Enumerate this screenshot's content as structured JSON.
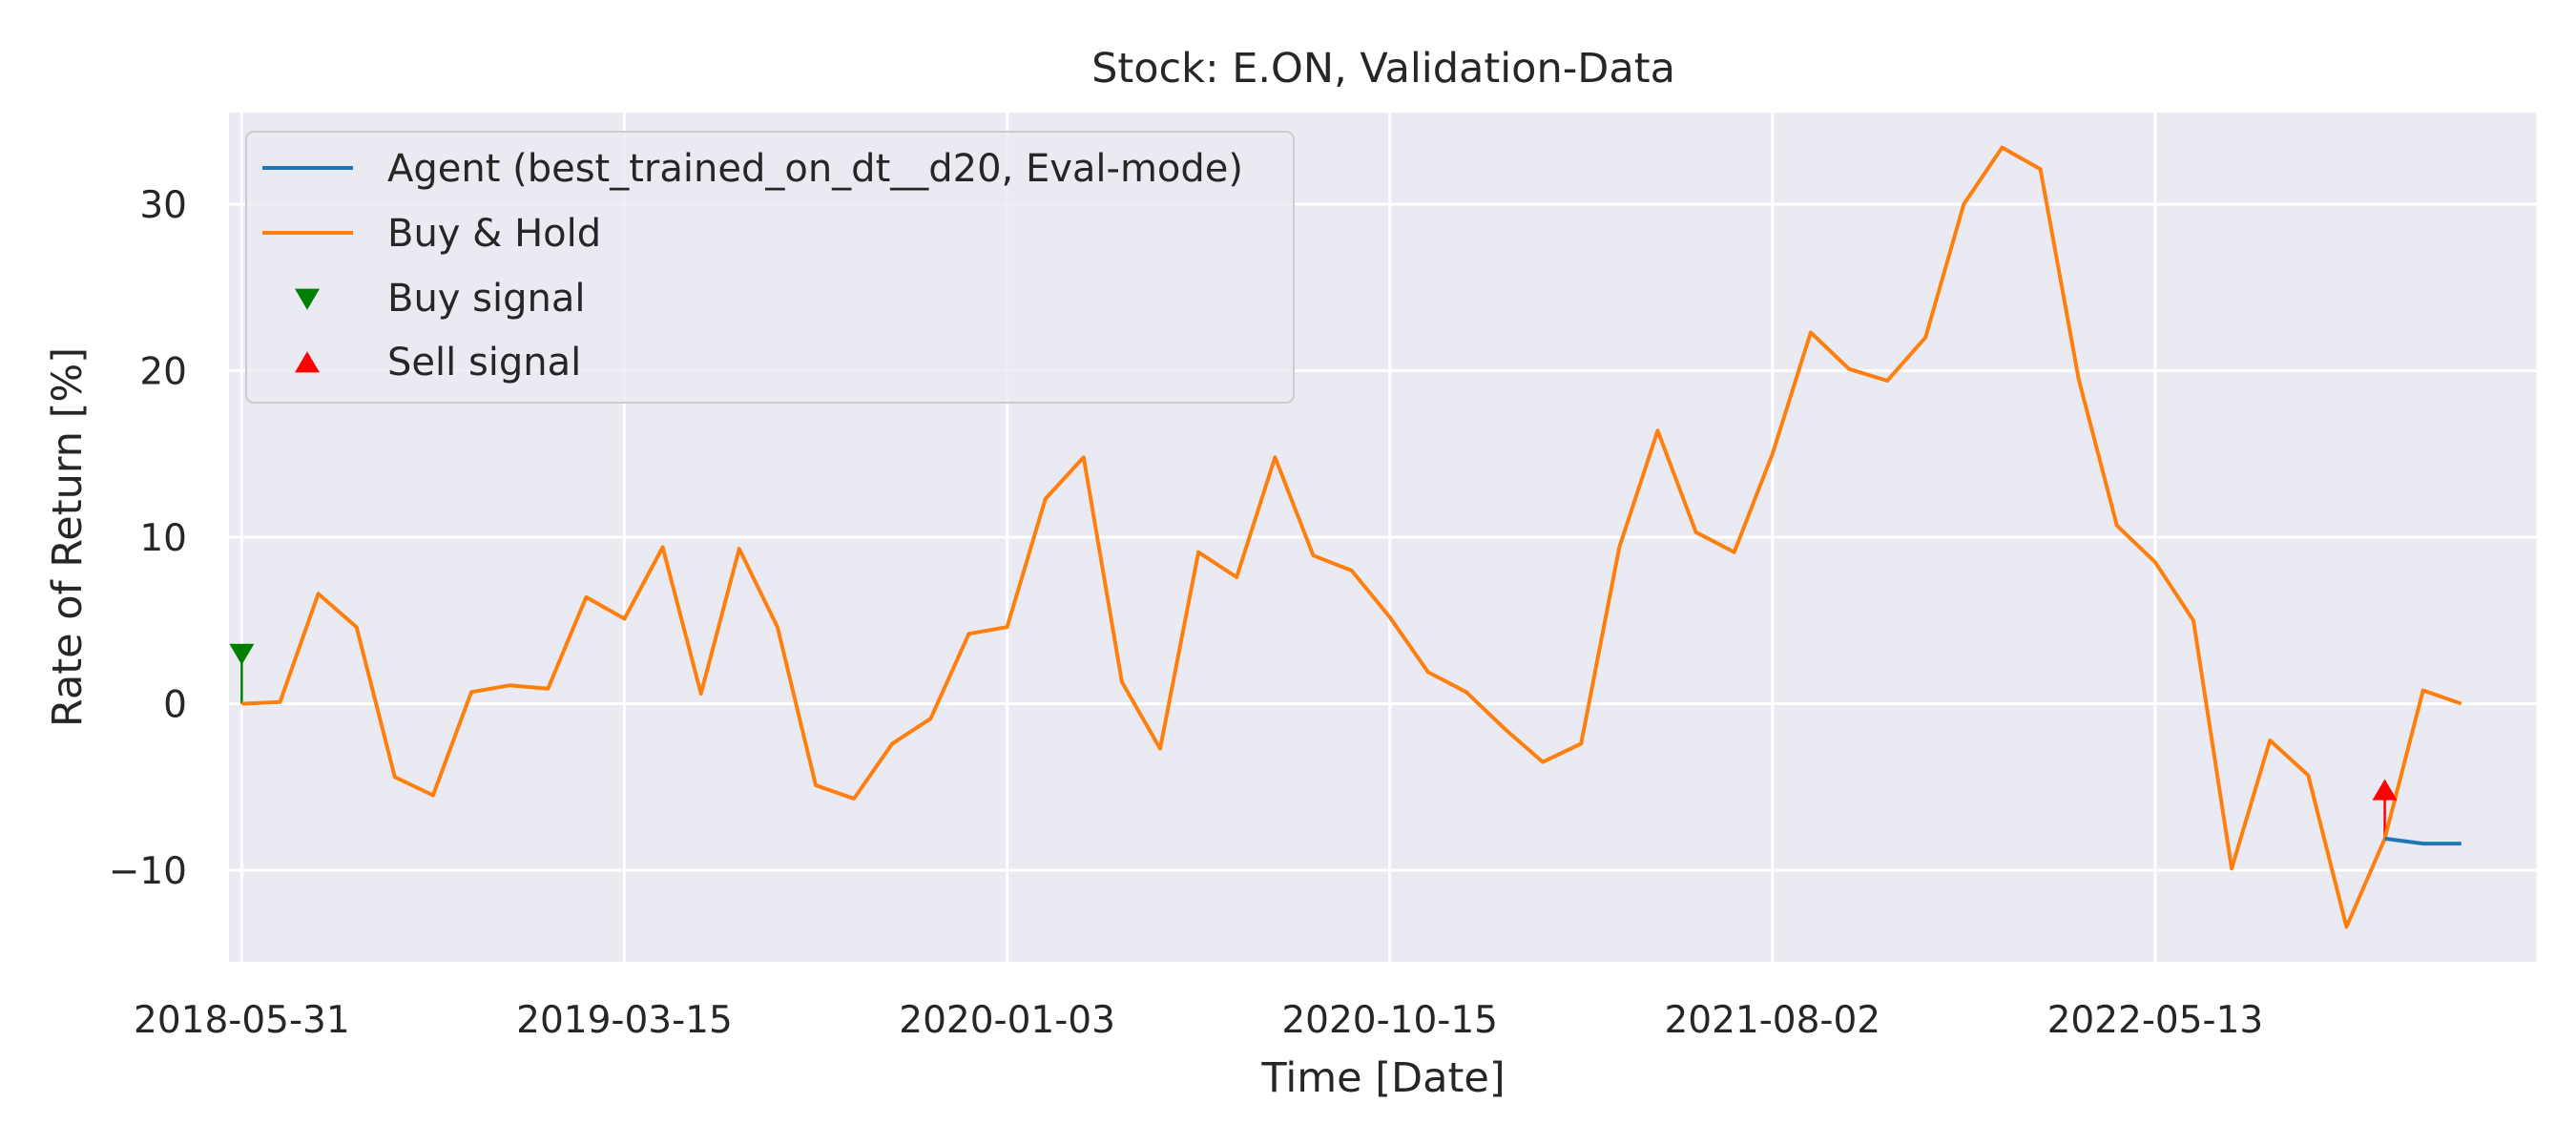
{
  "chart_data": {
    "type": "line",
    "title": "Stock: E.ON, Validation-Data",
    "xlabel": "Time [Date]",
    "ylabel": "Rate of Return [%]",
    "ylim": [
      -15.5,
      35.5
    ],
    "xlim": [
      -0.1,
      18.0
    ],
    "grid": true,
    "legend_position": "top-left",
    "x_ticks": [
      {
        "pos": 0,
        "label": "2018-05-31"
      },
      {
        "pos": 3,
        "label": "2019-03-15"
      },
      {
        "pos": 6,
        "label": "2020-01-03"
      },
      {
        "pos": 9,
        "label": "2020-10-15"
      },
      {
        "pos": 12,
        "label": "2021-08-02"
      },
      {
        "pos": 15,
        "label": "2022-05-13"
      },
      {
        "pos": 18,
        "label": ""
      }
    ],
    "y_ticks": [
      {
        "value": -10,
        "label": "−10"
      },
      {
        "value": 0,
        "label": "0"
      },
      {
        "value": 10,
        "label": "10"
      },
      {
        "value": 20,
        "label": "20"
      },
      {
        "value": 30,
        "label": "30"
      }
    ],
    "series": [
      {
        "name": "Agent (best_trained_on_dt__d20, Eval-mode)",
        "color": "#1f77b4",
        "points": [
          [
            16.8,
            -8.1
          ],
          [
            17.1,
            -8.4
          ],
          [
            17.4,
            -8.4
          ]
        ]
      },
      {
        "name": "Buy & Hold",
        "color": "#ff7f0e",
        "points": [
          [
            0.0,
            0.0
          ],
          [
            0.3,
            0.1
          ],
          [
            0.6,
            6.6
          ],
          [
            0.9,
            4.6
          ],
          [
            1.2,
            -4.4
          ],
          [
            1.5,
            -5.5
          ],
          [
            1.8,
            0.7
          ],
          [
            2.1,
            1.1
          ],
          [
            2.4,
            0.9
          ],
          [
            2.7,
            6.4
          ],
          [
            3.0,
            5.1
          ],
          [
            3.3,
            9.4
          ],
          [
            3.6,
            0.6
          ],
          [
            3.9,
            9.3
          ],
          [
            4.2,
            4.6
          ],
          [
            4.5,
            -4.9
          ],
          [
            4.8,
            -5.7
          ],
          [
            5.1,
            -2.4
          ],
          [
            5.4,
            -0.9
          ],
          [
            5.7,
            4.2
          ],
          [
            6.0,
            4.6
          ],
          [
            6.3,
            12.3
          ],
          [
            6.6,
            14.8
          ],
          [
            6.9,
            1.3
          ],
          [
            7.2,
            -2.7
          ],
          [
            7.5,
            9.1
          ],
          [
            7.8,
            7.6
          ],
          [
            8.1,
            14.8
          ],
          [
            8.4,
            8.9
          ],
          [
            8.7,
            8.0
          ],
          [
            9.0,
            5.2
          ],
          [
            9.3,
            1.9
          ],
          [
            9.6,
            0.7
          ],
          [
            9.9,
            -1.5
          ],
          [
            10.2,
            -3.5
          ],
          [
            10.5,
            -2.4
          ],
          [
            10.8,
            9.4
          ],
          [
            11.1,
            16.4
          ],
          [
            11.4,
            10.3
          ],
          [
            11.7,
            9.1
          ],
          [
            12.0,
            15.0
          ],
          [
            12.3,
            22.3
          ],
          [
            12.6,
            20.1
          ],
          [
            12.9,
            19.4
          ],
          [
            13.2,
            22.0
          ],
          [
            13.5,
            30.0
          ],
          [
            13.8,
            33.4
          ],
          [
            14.1,
            32.1
          ],
          [
            14.4,
            19.5
          ],
          [
            14.7,
            10.7
          ],
          [
            15.0,
            8.5
          ],
          [
            15.3,
            5.0
          ],
          [
            15.6,
            -9.9
          ],
          [
            15.9,
            -2.2
          ],
          [
            16.2,
            -4.3
          ],
          [
            16.5,
            -13.4
          ],
          [
            16.8,
            -8.1
          ],
          [
            17.1,
            0.8
          ],
          [
            17.4,
            0.0
          ]
        ]
      },
      {
        "name": "Buy signal",
        "color": "#008000",
        "marker": "triangle-down",
        "points": [
          [
            0.0,
            3.0
          ]
        ]
      },
      {
        "name": "Sell signal",
        "color": "#ff0000",
        "marker": "triangle-up",
        "points": [
          [
            16.8,
            -5.2
          ]
        ]
      }
    ]
  }
}
